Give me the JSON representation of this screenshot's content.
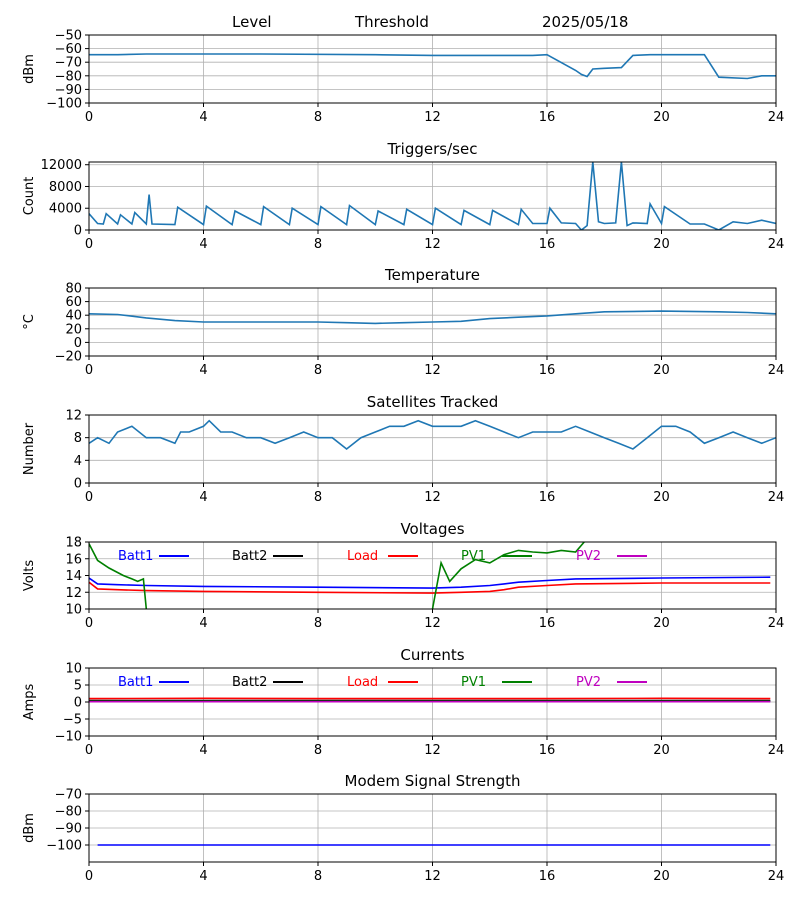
{
  "header": {
    "level_label": "Level",
    "threshold_label": "Threshold",
    "date": "2025/05/18"
  },
  "chart_data": [
    {
      "id": "level",
      "type": "line",
      "title": "",
      "ylabel": "dBm",
      "xlim": [
        0,
        24
      ],
      "ylim": [
        -100,
        -50
      ],
      "xticks": [
        0,
        4,
        8,
        12,
        16,
        20,
        24
      ],
      "yticks": [
        -100,
        -90,
        -80,
        -70,
        -60,
        -50
      ],
      "grid": true,
      "series": [
        {
          "color": "#1f77b4",
          "x": [
            0,
            1,
            2,
            3,
            6,
            10,
            12,
            14,
            15.5,
            16,
            17,
            17.2,
            17.4,
            17.6,
            18,
            18.6,
            19,
            19.6,
            20,
            21,
            21.5,
            22,
            23,
            23.5,
            24
          ],
          "y": [
            -64.5,
            -64.5,
            -64,
            -64,
            -64,
            -64.5,
            -65,
            -65,
            -65,
            -64.5,
            -76,
            -79,
            -80.5,
            -75,
            -74.5,
            -74,
            -65,
            -64.5,
            -64.5,
            -64.5,
            -64.5,
            -81,
            -82,
            -80,
            -80
          ]
        }
      ]
    },
    {
      "id": "triggers",
      "type": "line",
      "title": "Triggers/sec",
      "ylabel": "Count",
      "xlim": [
        0,
        24
      ],
      "ylim": [
        0,
        12500
      ],
      "xticks": [
        0,
        4,
        8,
        12,
        16,
        20,
        24
      ],
      "yticks": [
        0,
        4000,
        8000,
        12000
      ],
      "grid": true,
      "series": [
        {
          "color": "#1f77b4",
          "x": [
            0,
            0.3,
            0.5,
            0.6,
            1.0,
            1.1,
            1.5,
            1.6,
            2.0,
            2.1,
            2.2,
            3.0,
            3.1,
            4.0,
            4.1,
            5.0,
            5.1,
            6.0,
            6.1,
            7.0,
            7.1,
            8.0,
            8.1,
            9.0,
            9.1,
            10.0,
            10.1,
            11.0,
            11.1,
            12.0,
            12.1,
            13.0,
            13.1,
            14.0,
            14.1,
            15.0,
            15.1,
            15.5,
            16.0,
            16.1,
            16.5,
            17.0,
            17.2,
            17.4,
            17.6,
            17.8,
            18.0,
            18.4,
            18.6,
            18.8,
            19.0,
            19.5,
            19.6,
            20.0,
            20.1,
            21.0,
            21.5,
            22.0,
            22.5,
            23.0,
            23.5,
            24
          ],
          "y": [
            3000,
            1200,
            1100,
            3000,
            1100,
            2800,
            1100,
            3200,
            1100,
            6500,
            1100,
            1000,
            4200,
            1000,
            4400,
            1000,
            3500,
            1000,
            4300,
            1000,
            4000,
            1000,
            4300,
            1000,
            4500,
            1000,
            3500,
            1000,
            3800,
            1000,
            4000,
            1000,
            3600,
            1000,
            3600,
            1000,
            3800,
            1200,
            1200,
            4000,
            1300,
            1200,
            0,
            800,
            12500,
            1500,
            1200,
            1300,
            12500,
            800,
            1300,
            1200,
            4800,
            1200,
            4300,
            1100,
            1100,
            0,
            1500,
            1200,
            1800,
            1200
          ]
        }
      ]
    },
    {
      "id": "temperature",
      "type": "line",
      "title": "Temperature",
      "ylabel": "°C",
      "xlim": [
        0,
        24
      ],
      "ylim": [
        -20,
        80
      ],
      "xticks": [
        0,
        4,
        8,
        12,
        16,
        20,
        24
      ],
      "yticks": [
        -20,
        0,
        20,
        40,
        60,
        80
      ],
      "grid": true,
      "series": [
        {
          "color": "#1f77b4",
          "x": [
            0,
            1,
            2,
            3,
            4,
            6,
            8,
            9,
            10,
            11,
            12,
            13,
            14,
            15,
            16,
            17,
            18,
            20,
            22,
            23,
            24
          ],
          "y": [
            42,
            41,
            36,
            32,
            30,
            30,
            30,
            29,
            28,
            29,
            30,
            31,
            35,
            37,
            39,
            42,
            45,
            46,
            45,
            44,
            42
          ]
        }
      ]
    },
    {
      "id": "satellites",
      "type": "line",
      "title": "Satellites Tracked",
      "ylabel": "Number",
      "xlim": [
        0,
        24
      ],
      "ylim": [
        0,
        12
      ],
      "xticks": [
        0,
        4,
        8,
        12,
        16,
        20,
        24
      ],
      "yticks": [
        0,
        4,
        8,
        12
      ],
      "grid": true,
      "series": [
        {
          "color": "#1f77b4",
          "x": [
            0,
            0.3,
            0.7,
            1.0,
            1.5,
            2.0,
            2.5,
            3.0,
            3.2,
            3.5,
            4.0,
            4.2,
            4.6,
            5.0,
            5.5,
            6.0,
            6.5,
            7.0,
            7.5,
            8.0,
            8.5,
            9.0,
            9.5,
            10.0,
            10.5,
            11.0,
            11.5,
            12.0,
            12.5,
            13.0,
            13.5,
            14.0,
            14.5,
            15.0,
            15.5,
            16.0,
            16.5,
            17.0,
            17.5,
            18.0,
            18.5,
            19.0,
            19.5,
            20.0,
            20.5,
            21.0,
            21.5,
            22.0,
            22.5,
            23.0,
            23.5,
            24
          ],
          "y": [
            7,
            8,
            7,
            9,
            10,
            8,
            8,
            7,
            9,
            9,
            10,
            11,
            9,
            9,
            8,
            8,
            7,
            8,
            9,
            8,
            8,
            6,
            8,
            9,
            10,
            10,
            11,
            10,
            10,
            10,
            11,
            10,
            9,
            8,
            9,
            9,
            9,
            10,
            9,
            8,
            7,
            6,
            8,
            10,
            10,
            9,
            7,
            8,
            9,
            8,
            7,
            8
          ]
        }
      ]
    },
    {
      "id": "voltages",
      "type": "line",
      "title": "Voltages",
      "ylabel": "Volts",
      "xlim": [
        0,
        24
      ],
      "ylim": [
        10,
        18
      ],
      "xticks": [
        0,
        4,
        8,
        12,
        16,
        20,
        24
      ],
      "yticks": [
        10,
        12,
        14,
        16,
        18
      ],
      "grid": true,
      "series": [
        {
          "name": "Batt1",
          "color": "#0000ff",
          "x": [
            0,
            0.3,
            1,
            2,
            4,
            8,
            12,
            13,
            14,
            14.5,
            15,
            16,
            17,
            20,
            23.8
          ],
          "y": [
            13.7,
            13.0,
            12.9,
            12.8,
            12.7,
            12.6,
            12.5,
            12.6,
            12.8,
            13.0,
            13.2,
            13.4,
            13.6,
            13.7,
            13.8
          ]
        },
        {
          "name": "Batt2",
          "color": "#000000",
          "x": [],
          "y": []
        },
        {
          "name": "Load",
          "color": "#ff0000",
          "x": [
            0,
            0.3,
            1,
            2,
            4,
            8,
            12,
            13,
            14,
            14.5,
            15,
            16,
            17,
            20,
            23.8
          ],
          "y": [
            13.2,
            12.4,
            12.3,
            12.2,
            12.1,
            12.0,
            11.9,
            12.0,
            12.1,
            12.3,
            12.6,
            12.8,
            13.0,
            13.1,
            13.1
          ]
        },
        {
          "name": "PV1",
          "color": "#008000",
          "x": [
            0,
            0.3,
            0.7,
            1.2,
            1.5,
            1.7,
            1.9,
            2.0,
            2.1,
            11.8,
            12.0,
            12.3,
            12.6,
            13.0,
            13.5,
            14.0,
            14.5,
            15.0,
            15.5,
            16.0,
            16.5,
            17.0,
            17.3,
            17.6
          ],
          "y": [
            17.8,
            15.8,
            14.9,
            14.0,
            13.6,
            13.3,
            13.6,
            10.0,
            8.0,
            8.0,
            10.0,
            15.5,
            13.3,
            14.8,
            15.9,
            15.5,
            16.5,
            17.0,
            16.8,
            16.7,
            17.0,
            16.8,
            18.0,
            19.0
          ]
        },
        {
          "name": "PV2",
          "color": "#bf00bf",
          "x": [],
          "y": []
        }
      ]
    },
    {
      "id": "currents",
      "type": "line",
      "title": "Currents",
      "ylabel": "Amps",
      "xlim": [
        0,
        24
      ],
      "ylim": [
        -10,
        10
      ],
      "xticks": [
        0,
        4,
        8,
        12,
        16,
        20,
        24
      ],
      "yticks": [
        -10,
        -5,
        0,
        5,
        10
      ],
      "grid": true,
      "series": [
        {
          "name": "Batt1",
          "color": "#0000ff",
          "x": [
            0,
            23.8
          ],
          "y": [
            0.3,
            0.3
          ]
        },
        {
          "name": "Batt2",
          "color": "#000000",
          "x": [
            0,
            23.8
          ],
          "y": [
            0.4,
            0.4
          ]
        },
        {
          "name": "Load",
          "color": "#ff0000",
          "x": [
            0,
            4,
            8,
            12,
            16,
            20,
            23.8
          ],
          "y": [
            1.0,
            1.1,
            1.0,
            1.0,
            1.0,
            1.1,
            1.0
          ]
        },
        {
          "name": "PV1",
          "color": "#008000",
          "x": [
            0,
            23.8
          ],
          "y": [
            0.2,
            0.2
          ]
        },
        {
          "name": "PV2",
          "color": "#bf00bf",
          "x": [
            0,
            23.8
          ],
          "y": [
            0.1,
            0.1
          ]
        }
      ]
    },
    {
      "id": "modem",
      "type": "line",
      "title": "Modem Signal Strength",
      "ylabel": "dBm",
      "xlim": [
        0,
        24
      ],
      "ylim": [
        -110,
        -70
      ],
      "xticks": [
        0,
        4,
        8,
        12,
        16,
        20,
        24
      ],
      "yticks": [
        -100,
        -90,
        -80,
        -70
      ],
      "grid": true,
      "series": [
        {
          "color": "#0000ff",
          "x": [
            0.3,
            23.8
          ],
          "y": [
            -100,
            -100
          ]
        }
      ]
    }
  ],
  "legend_text_colors": {
    "Batt1": "#0000ff",
    "Batt2": "#000000",
    "Load": "#ff0000",
    "PV1": "#008000",
    "PV2": "#bf00bf"
  }
}
